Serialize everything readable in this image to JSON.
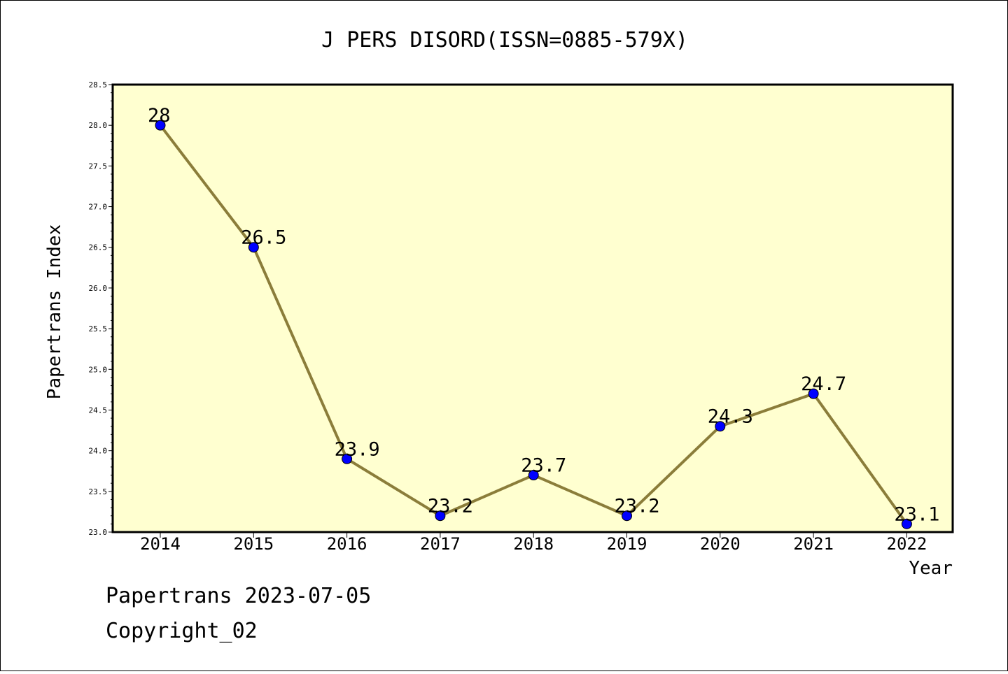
{
  "chart_data": {
    "type": "line",
    "title": "J PERS DISORD(ISSN=0885-579X)",
    "xlabel": "Year",
    "ylabel": "Papertrans Index",
    "categories": [
      "2014",
      "2015",
      "2016",
      "2017",
      "2018",
      "2019",
      "2020",
      "2021",
      "2022"
    ],
    "series": [
      {
        "values": [
          28,
          26.5,
          23.9,
          23.2,
          23.7,
          23.2,
          24.3,
          24.7,
          23.1
        ],
        "labels": [
          "28",
          "26.5",
          "23.9",
          "23.2",
          "23.7",
          "23.2",
          "24.3",
          "24.7",
          "23.1"
        ]
      }
    ],
    "ylim": [
      23.0,
      28.5
    ],
    "yticks": [
      "23.0",
      "23.5",
      "24.0",
      "24.5",
      "25.0",
      "25.5",
      "26.0",
      "26.5",
      "27.0",
      "27.5",
      "28.0",
      "28.5"
    ],
    "grid": false,
    "colors": {
      "plot_background": "#ffffd0",
      "line": "#8b7d3a",
      "marker": "#0000ff"
    }
  },
  "footer": {
    "line1": "Papertrans 2023-07-05",
    "line2": "Copyright_02"
  }
}
